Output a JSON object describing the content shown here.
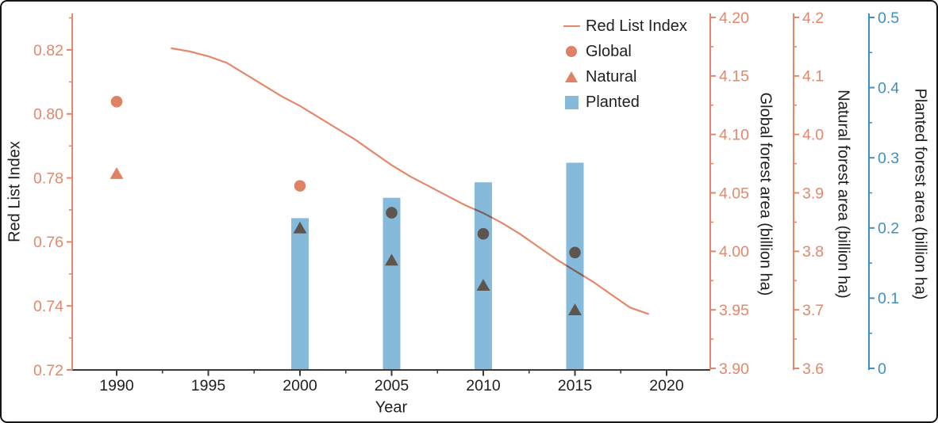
{
  "window": {
    "background": "#ffffff",
    "border_color": "#141414"
  },
  "legend": {
    "items": [
      {
        "label": "Red List Index",
        "marker": "line",
        "color": "#E5876A"
      },
      {
        "label": "Global",
        "marker": "circle",
        "color": "#DF8163"
      },
      {
        "label": "Natural",
        "marker": "triangle",
        "color": "#DF8163"
      },
      {
        "label": "Planted",
        "marker": "square",
        "color": "#85BADB"
      }
    ]
  },
  "chart_data": {
    "type": "mixed",
    "title": "",
    "xlabel": "Year",
    "x_axis": {
      "lim": [
        1987.6,
        2022.4
      ],
      "color": "#3A3A3A",
      "label_color": "#1F1F1F",
      "ticks": [
        {
          "v": 1990,
          "label": "1990"
        },
        {
          "v": 1995,
          "label": "1995"
        },
        {
          "v": 2000,
          "label": "2000"
        },
        {
          "v": 2005,
          "label": "2005"
        },
        {
          "v": 2010,
          "label": "2010"
        },
        {
          "v": 2015,
          "label": "2015"
        },
        {
          "v": 2020,
          "label": "2020"
        }
      ],
      "minor_ticks": [
        1992.5,
        1997.5,
        2002.5,
        2007.5,
        2012.5,
        2017.5
      ]
    },
    "y_axes": [
      {
        "id": "rli",
        "title": "Red List Index",
        "side": "left",
        "lim": [
          0.72,
          0.82
        ],
        "color": "#E5876A",
        "ticks": [
          {
            "v": 0.72,
            "label": "0.72"
          },
          {
            "v": 0.74,
            "label": "0.74"
          },
          {
            "v": 0.76,
            "label": "0.76"
          },
          {
            "v": 0.78,
            "label": "0.78"
          },
          {
            "v": 0.8,
            "label": "0.80"
          },
          {
            "v": 0.82,
            "label": "0.82"
          }
        ],
        "minor_ticks": [
          0.73,
          0.75,
          0.77,
          0.79,
          0.81,
          0.83
        ]
      },
      {
        "id": "global",
        "title": "Global forest area (billion ha)",
        "side": "right",
        "lim": [
          3.9,
          4.2
        ],
        "color": "#E5876A",
        "ticks": [
          {
            "v": 3.9,
            "label": "3.90"
          },
          {
            "v": 3.95,
            "label": "3.95"
          },
          {
            "v": 4.0,
            "label": "4.00"
          },
          {
            "v": 4.05,
            "label": "4.05"
          },
          {
            "v": 4.1,
            "label": "4.10"
          },
          {
            "v": 4.15,
            "label": "4.15"
          },
          {
            "v": 4.2,
            "label": "4.20"
          }
        ],
        "minor_ticks": [
          3.925,
          3.975,
          4.025,
          4.075,
          4.125,
          4.175
        ]
      },
      {
        "id": "natural",
        "title": "Natural forest area (billion ha)",
        "side": "right",
        "lim": [
          3.6,
          4.2
        ],
        "color": "#E5876A",
        "ticks": [
          {
            "v": 3.6,
            "label": "3.6"
          },
          {
            "v": 3.7,
            "label": "3.7"
          },
          {
            "v": 3.8,
            "label": "3.8"
          },
          {
            "v": 3.9,
            "label": "3.9"
          },
          {
            "v": 4.0,
            "label": "4.0"
          },
          {
            "v": 4.1,
            "label": "4.1"
          },
          {
            "v": 4.2,
            "label": "4.2"
          }
        ],
        "minor_ticks": [
          3.65,
          3.75,
          3.85,
          3.95,
          4.05,
          4.15
        ]
      },
      {
        "id": "planted",
        "title": "Planted forest area (billion ha)",
        "side": "right",
        "lim": [
          0,
          0.5
        ],
        "color": "#3E8FC4",
        "ticks": [
          {
            "v": 0.0,
            "label": "0"
          },
          {
            "v": 0.1,
            "label": "0.1"
          },
          {
            "v": 0.2,
            "label": "0.2"
          },
          {
            "v": 0.3,
            "label": "0.3"
          },
          {
            "v": 0.4,
            "label": "0.4"
          },
          {
            "v": 0.5,
            "label": "0.5"
          }
        ],
        "minor_ticks": [
          0.05,
          0.15,
          0.25,
          0.35,
          0.45
        ]
      }
    ],
    "series": [
      {
        "name": "Red List Index",
        "type": "line",
        "axis": "rli",
        "color": "#E5876A",
        "points": [
          [
            1993,
            0.8205
          ],
          [
            1994,
            0.8195
          ],
          [
            1995,
            0.818
          ],
          [
            1996,
            0.816
          ],
          [
            1997,
            0.8125
          ],
          [
            1998,
            0.809
          ],
          [
            1999,
            0.8055
          ],
          [
            2000,
            0.8025
          ],
          [
            2001,
            0.799
          ],
          [
            2002,
            0.7955
          ],
          [
            2003,
            0.792
          ],
          [
            2004,
            0.788
          ],
          [
            2005,
            0.784
          ],
          [
            2006,
            0.7805
          ],
          [
            2007,
            0.7775
          ],
          [
            2008,
            0.7745
          ],
          [
            2009,
            0.7715
          ],
          [
            2010,
            0.769
          ],
          [
            2011,
            0.766
          ],
          [
            2012,
            0.7625
          ],
          [
            2013,
            0.7585
          ],
          [
            2014,
            0.7545
          ],
          [
            2015,
            0.751
          ],
          [
            2016,
            0.7475
          ],
          [
            2017,
            0.7435
          ],
          [
            2018,
            0.7395
          ],
          [
            2019,
            0.7375
          ]
        ]
      },
      {
        "name": "Global",
        "type": "scatter",
        "marker": "circle",
        "axis": "global",
        "color": "#DF8163",
        "overlap_color": "#5E554E",
        "points": [
          [
            1990,
            4.128
          ],
          [
            2000,
            4.056
          ],
          [
            2005,
            4.033
          ],
          [
            2010,
            4.015
          ],
          [
            2015,
            3.999
          ]
        ]
      },
      {
        "name": "Natural",
        "type": "scatter",
        "marker": "triangle",
        "axis": "natural",
        "color": "#DF8163",
        "overlap_color": "#5E554E",
        "points": [
          [
            1990,
            3.933
          ],
          [
            2000,
            3.84
          ],
          [
            2005,
            3.785
          ],
          [
            2010,
            3.742
          ],
          [
            2015,
            3.7
          ]
        ]
      },
      {
        "name": "Planted",
        "type": "bar",
        "axis": "planted",
        "color": "#85BADB",
        "points": [
          [
            2000,
            0.214
          ],
          [
            2005,
            0.243
          ],
          [
            2010,
            0.265
          ],
          [
            2015,
            0.293
          ]
        ]
      }
    ]
  }
}
